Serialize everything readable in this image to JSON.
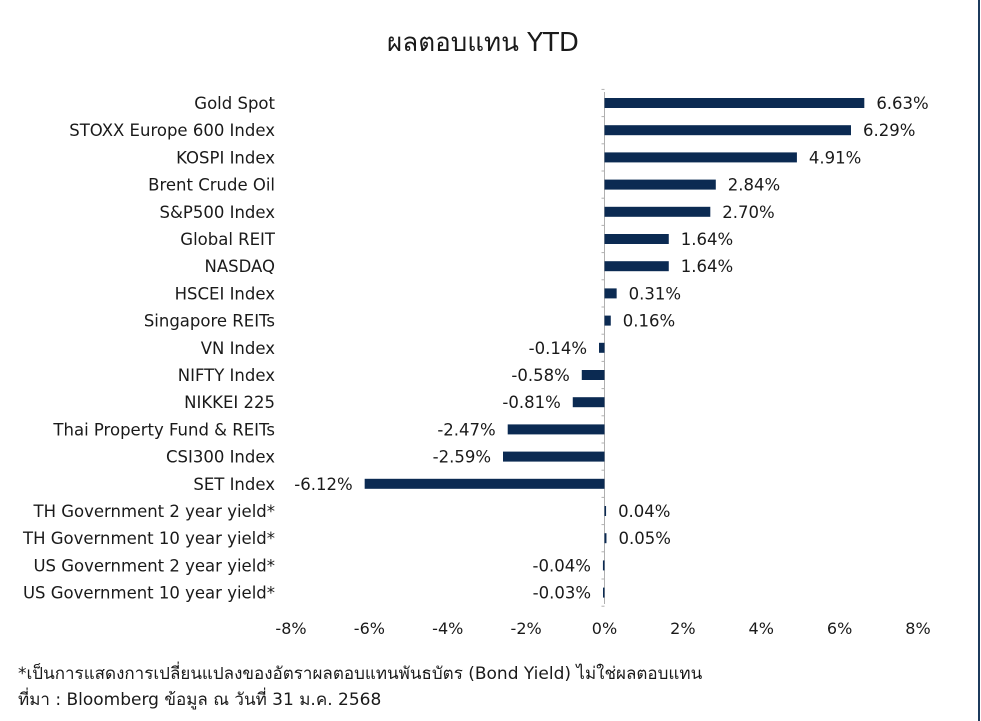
{
  "title": "ผลตอบแทน YTD",
  "footnotes": {
    "note": "*เป็นการแสดงการเปลี่ยนแปลงของอัตราผลตอบแทนพันธบัตร (Bond Yield) ไม่ใช่ผลตอบแทน",
    "source": "ที่มา : Bloomberg ข้อมูล ณ วันที่ 31 ม.ค. 2568"
  },
  "colors": {
    "bar": "#0b2a52",
    "axis": "#b0b0b0",
    "frame": "#1c3a5c"
  },
  "chart_data": {
    "type": "bar",
    "orientation": "horizontal",
    "title": "ผลตอบแทน YTD",
    "xlabel": "",
    "ylabel": "",
    "xlim": [
      -8,
      8
    ],
    "x_ticks": [
      -8,
      -6,
      -4,
      -2,
      0,
      2,
      4,
      6,
      8
    ],
    "x_tick_labels": [
      "-8%",
      "-6%",
      "-4%",
      "-2%",
      "0%",
      "2%",
      "4%",
      "6%",
      "8%"
    ],
    "grid": false,
    "legend": "none",
    "categories": [
      "Gold Spot",
      "STOXX Europe 600 Index",
      "KOSPI Index",
      "Brent Crude Oil",
      "S&P500 Index",
      "Global REIT",
      "NASDAQ",
      "HSCEI Index",
      "Singapore REITs",
      "VN Index",
      "NIFTY Index",
      "NIKKEI 225",
      "Thai Property Fund & REITs",
      "CSI300 Index",
      "SET Index",
      "TH Government 2 year yield*",
      "TH Government 10 year yield*",
      "US Government 2 year yield*",
      "US Government 10 year yield*"
    ],
    "values": [
      6.63,
      6.29,
      4.91,
      2.84,
      2.7,
      1.64,
      1.64,
      0.31,
      0.16,
      -0.14,
      -0.58,
      -0.81,
      -2.47,
      -2.59,
      -6.12,
      0.04,
      0.05,
      -0.04,
      -0.03
    ],
    "value_labels": [
      "6.63%",
      "6.29%",
      "4.91%",
      "2.84%",
      "2.70%",
      "1.64%",
      "1.64%",
      "0.31%",
      "0.16%",
      "-0.14%",
      "-0.58%",
      "-0.81%",
      "-2.47%",
      "-2.59%",
      "-6.12%",
      "0.04%",
      "0.05%",
      "-0.04%",
      "-0.03%"
    ]
  }
}
